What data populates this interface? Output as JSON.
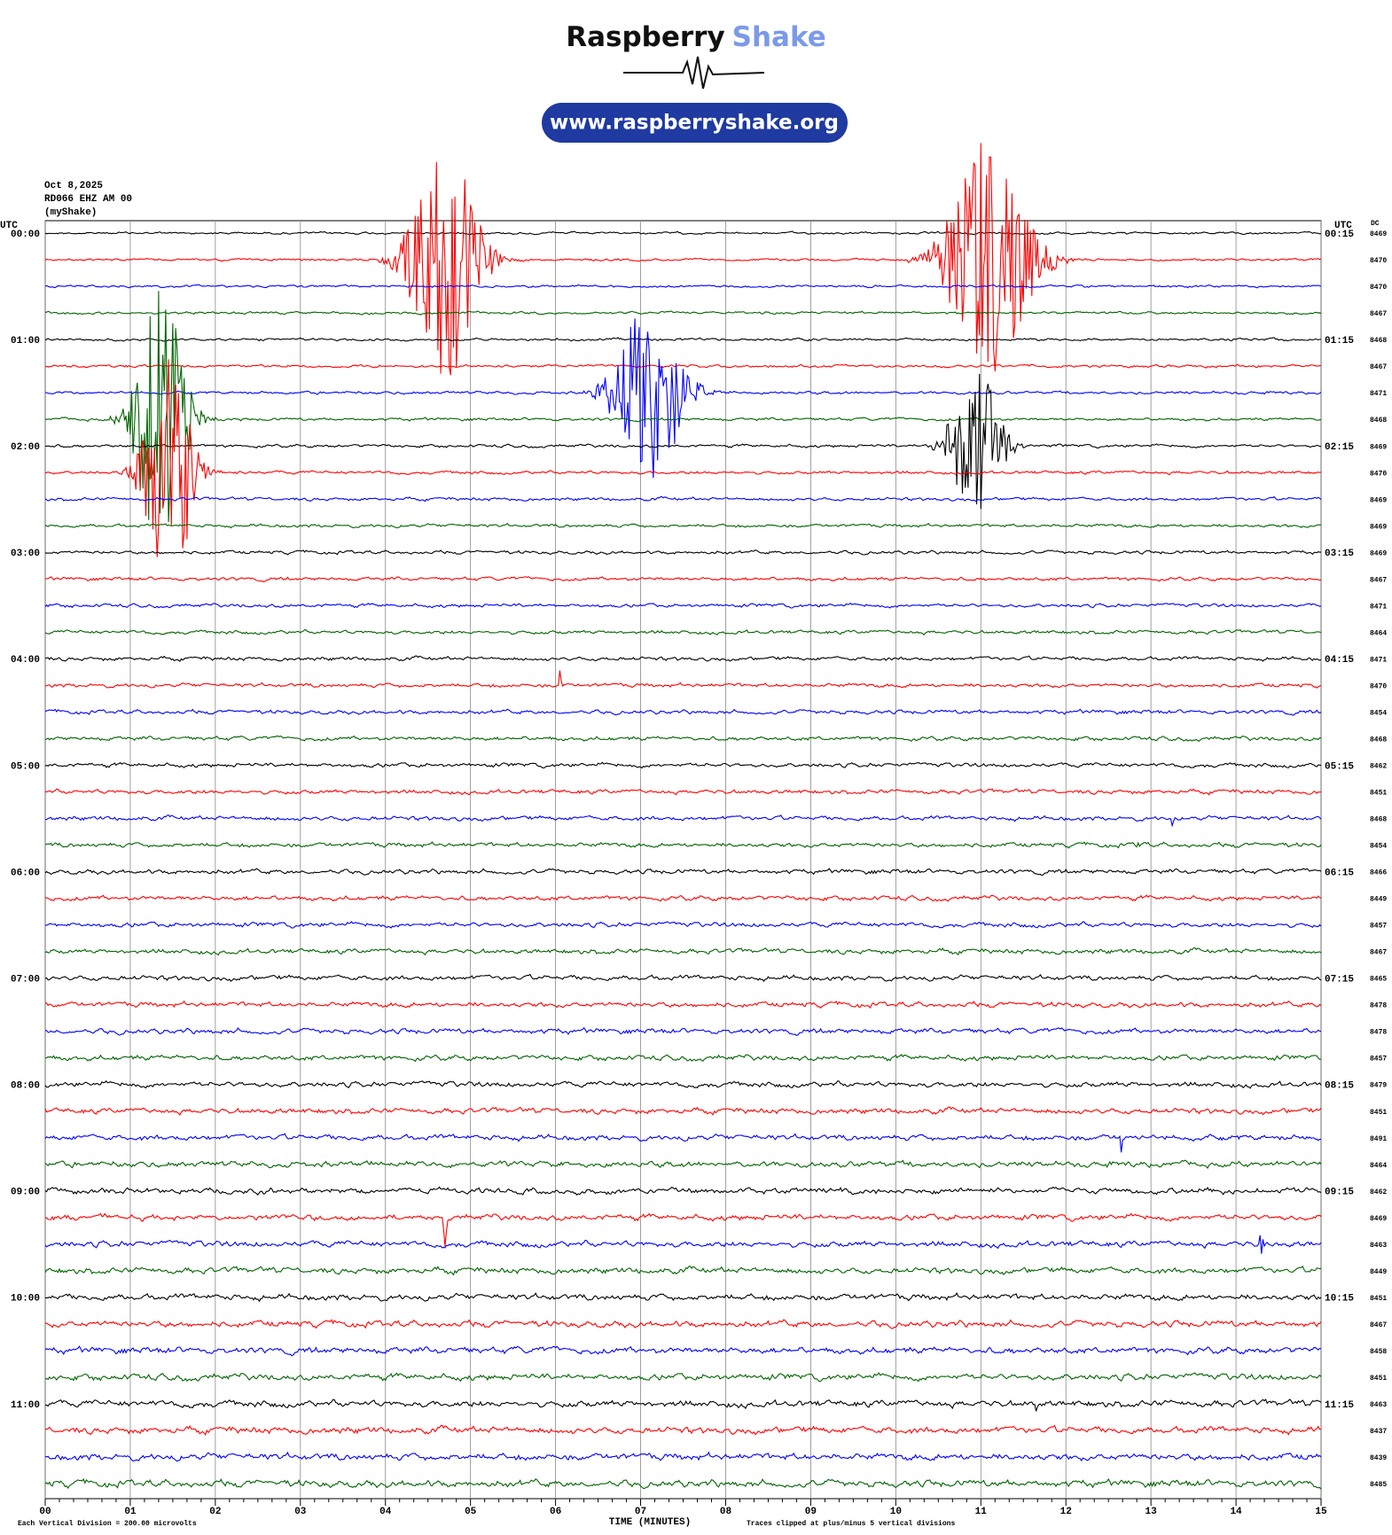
{
  "logo": {
    "brand": "Raspberry",
    "product": "Shake"
  },
  "url": "www.raspberryshake.org",
  "header": {
    "date": "Oct 8,2025",
    "station": "RD066 EHZ AM 00",
    "network": "(myShake)"
  },
  "left_axis": {
    "title": "UTC",
    "labels": [
      "00:00",
      "01:00",
      "02:00",
      "03:00",
      "04:00",
      "05:00",
      "06:00",
      "07:00",
      "08:00",
      "09:00",
      "10:00",
      "11:00"
    ]
  },
  "right_axis": {
    "title": "UTC",
    "labels": [
      "00:15",
      "01:15",
      "02:15",
      "03:15",
      "04:15",
      "05:15",
      "06:15",
      "07:15",
      "08:15",
      "09:15",
      "10:15",
      "11:15"
    ],
    "dc_title": "DC",
    "dc_values": [
      8469,
      8470,
      8470,
      8467,
      8468,
      8467,
      8471,
      8468,
      8469,
      8470,
      8469,
      8469,
      8469,
      8467,
      8471,
      8464,
      8471,
      8470,
      8454,
      8468,
      8462,
      8451,
      8468,
      8454,
      8466,
      8449,
      8457,
      8467,
      8465,
      8478,
      8478,
      8457,
      8479,
      8451,
      8491,
      8464,
      8462,
      8469,
      8463,
      8449,
      8451,
      8467,
      8458,
      8451,
      8463,
      8437,
      8439,
      8485
    ]
  },
  "x_axis": {
    "ticks": [
      "00",
      "01",
      "02",
      "03",
      "04",
      "05",
      "06",
      "07",
      "08",
      "09",
      "10",
      "11",
      "12",
      "13",
      "14",
      "15"
    ],
    "title": "TIME (MINUTES)"
  },
  "footer": {
    "scale_note": "Each Vertical Division =  200.00 microvolts",
    "clip_note": "Traces clipped at plus/minus 5 vertical divisions"
  },
  "trace_colors": [
    "#000000",
    "#ff0000",
    "#0000ff",
    "#006400"
  ],
  "events": [
    {
      "row": 1,
      "minute": 4.7,
      "amplitude": 4.6,
      "duration": 1.3
    },
    {
      "row": 1,
      "minute": 11.1,
      "amplitude": 4.6,
      "duration": 1.6
    },
    {
      "row": 7,
      "minute": 1.35,
      "amplitude": 5,
      "duration": 1.0
    },
    {
      "row": 9,
      "minute": 1.45,
      "amplitude": 5,
      "duration": 0.9
    },
    {
      "row": 6,
      "minute": 7.1,
      "amplitude": 3.5,
      "duration": 1.3
    },
    {
      "row": 8,
      "minute": 10.95,
      "amplitude": 3,
      "duration": 1.0
    },
    {
      "row": 17,
      "minute": 6.05,
      "amplitude": 1.2,
      "duration": 0.05
    },
    {
      "row": 22,
      "minute": 13.25,
      "amplitude": 0.5,
      "duration": 0.05
    },
    {
      "row": 23,
      "minute": 12.85,
      "amplitude": 0.6,
      "duration": 0.05
    },
    {
      "row": 34,
      "minute": 12.65,
      "amplitude": 0.8,
      "duration": 0.05
    },
    {
      "row": 37,
      "minute": 4.7,
      "amplitude": 1.6,
      "duration": 0.05
    },
    {
      "row": 38,
      "minute": 14.3,
      "amplitude": 0.6,
      "duration": 0.1
    },
    {
      "row": 44,
      "minute": 11.65,
      "amplitude": 0.6,
      "duration": 0.05
    }
  ]
}
